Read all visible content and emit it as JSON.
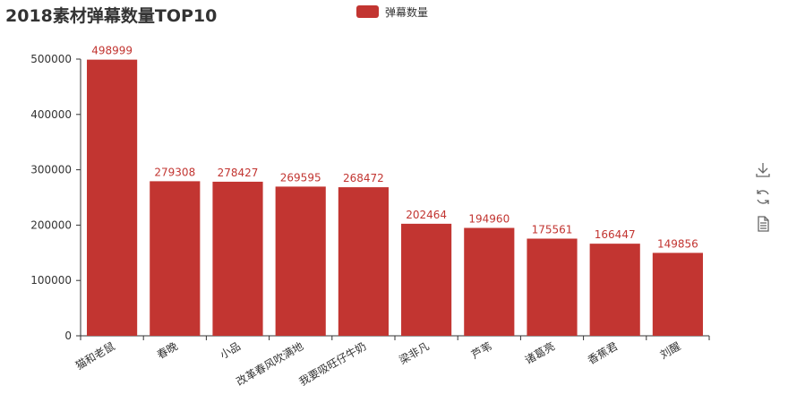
{
  "chart_data": {
    "type": "bar",
    "title": "2018素材弹幕数量TOP10",
    "legend": [
      "弹幕数量"
    ],
    "legend_position": "top-center",
    "categories": [
      "猫和老鼠",
      "春晚",
      "小品",
      "改革春风吹满地",
      "我要吸旺仔牛奶",
      "梁非凡",
      "芦苇",
      "诸葛亮",
      "香蕉君",
      "刘醒"
    ],
    "series": [
      {
        "name": "弹幕数量",
        "values": [
          498999,
          279308,
          278427,
          269595,
          268472,
          202464,
          194960,
          175561,
          166447,
          149856
        ]
      }
    ],
    "yticks": [
      "0",
      "100000",
      "200000",
      "300000",
      "400000",
      "500000"
    ],
    "ylim": [
      0,
      500000
    ],
    "grid": false,
    "colors": {
      "bar": "#c23531",
      "axis": "#333333"
    }
  },
  "toolbox": {
    "items": [
      {
        "icon": "download-icon"
      },
      {
        "icon": "refresh-icon"
      },
      {
        "icon": "data-view-icon"
      }
    ]
  }
}
